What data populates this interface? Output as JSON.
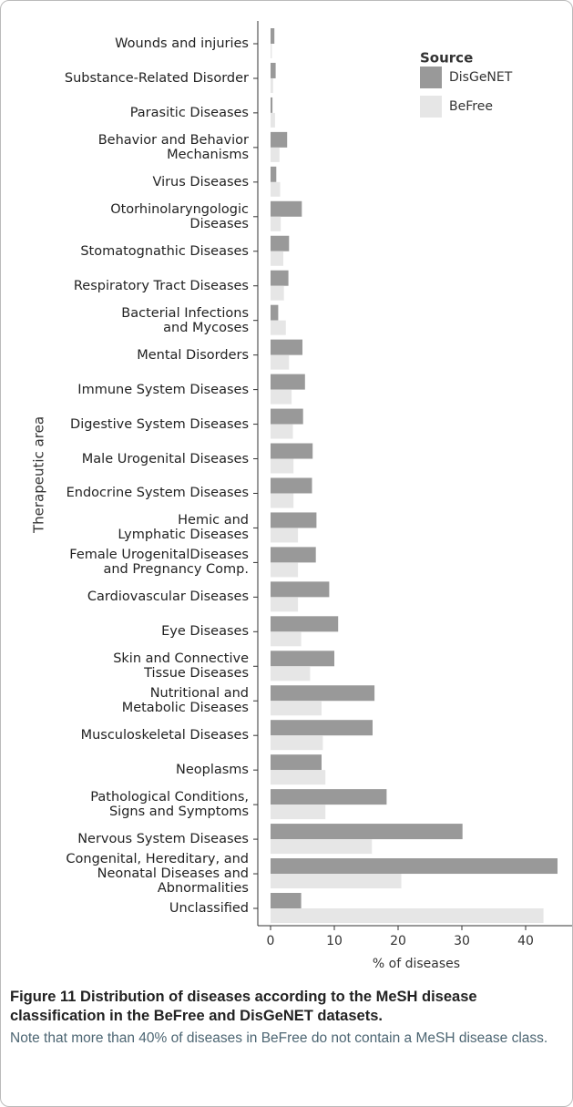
{
  "chart_data": {
    "type": "bar",
    "orientation": "horizontal",
    "x_label": "% of diseases",
    "y_label": "Therapeutic area",
    "legend_title": "Source",
    "legend": "top-right",
    "categories": [
      "Wounds and injuries",
      "Substance-Related Disorder",
      "Parasitic Diseases",
      "Behavior and Behavior\nMechanisms",
      "Virus Diseases",
      "Otorhinolaryngologic\nDiseases",
      "Stomatognathic Diseases",
      "Respiratory Tract Diseases",
      "Bacterial Infections\nand Mycoses",
      "Mental Disorders",
      "Immune System Diseases",
      "Digestive System Diseases",
      "Male Urogenital Diseases",
      "Endocrine System Diseases",
      "Hemic and\nLymphatic Diseases",
      "Female UrogenitalDiseases\nand Pregnancy Comp.",
      "Cardiovascular Diseases",
      "Eye Diseases",
      "Skin and Connective\nTissue Diseases",
      "Nutritional and\nMetabolic Diseases",
      "Musculoskeletal Diseases",
      "Neoplasms",
      "Pathological Conditions,\nSigns and Symptoms",
      "Nervous System Diseases",
      "Congenital, Hereditary, and\nNeonatal Diseases and\nAbnormalities",
      "Unclassified"
    ],
    "series": [
      {
        "name": "DisGeNET",
        "color": "#999999",
        "values": [
          0.6,
          0.8,
          0.3,
          2.6,
          0.9,
          4.9,
          2.9,
          2.8,
          1.2,
          5.0,
          5.4,
          5.1,
          6.6,
          6.5,
          7.2,
          7.1,
          9.2,
          10.6,
          10.0,
          16.3,
          16.0,
          8.0,
          18.2,
          30.1,
          45.0,
          4.8
        ]
      },
      {
        "name": "BeFree",
        "color": "#e6e6e6",
        "values": [
          0.2,
          0.4,
          0.7,
          1.4,
          1.5,
          1.6,
          2.0,
          2.1,
          2.4,
          2.9,
          3.3,
          3.5,
          3.6,
          3.6,
          4.3,
          4.3,
          4.3,
          4.8,
          6.2,
          8.0,
          8.2,
          8.6,
          8.6,
          15.9,
          20.5,
          42.8
        ]
      }
    ],
    "xlim": [
      -2,
      47
    ],
    "xticks": [
      0,
      10,
      20,
      30,
      40
    ]
  },
  "caption": {
    "title": "Figure 11 Distribution of diseases according to the MeSH disease classification in the BeFree and DisGeNET datasets.",
    "text": "Note that more than 40% of diseases in BeFree do not contain a MeSH disease class."
  }
}
